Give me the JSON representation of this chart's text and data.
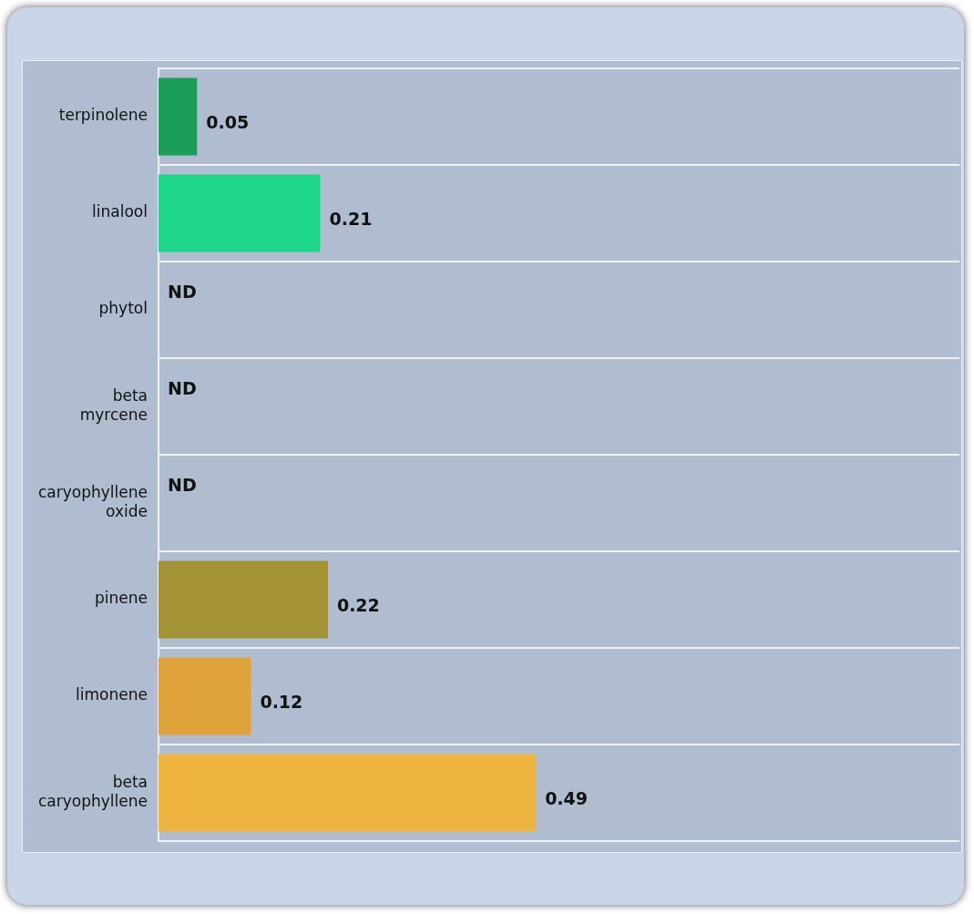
{
  "chart_data": {
    "type": "bar",
    "orientation": "horizontal",
    "categories": [
      "terpinolene",
      "linalool",
      "phytol",
      "beta myrcene",
      "caryophyllene oxide",
      "pinene",
      "limonene",
      "beta caryophyllene"
    ],
    "values": [
      0.05,
      0.21,
      null,
      null,
      null,
      0.22,
      0.12,
      0.49
    ],
    "value_labels": [
      "0.05",
      "0.21",
      "ND",
      "ND",
      "ND",
      "0.22",
      "0.12",
      "0.49"
    ],
    "colors": [
      "#1a9e5a",
      "#1ed68a",
      null,
      null,
      null,
      "#a39236",
      "#e0a23a",
      "#efb540"
    ],
    "xlim": [
      0,
      1.04
    ],
    "tick_labels": "y",
    "grid": "y",
    "legend": false
  }
}
